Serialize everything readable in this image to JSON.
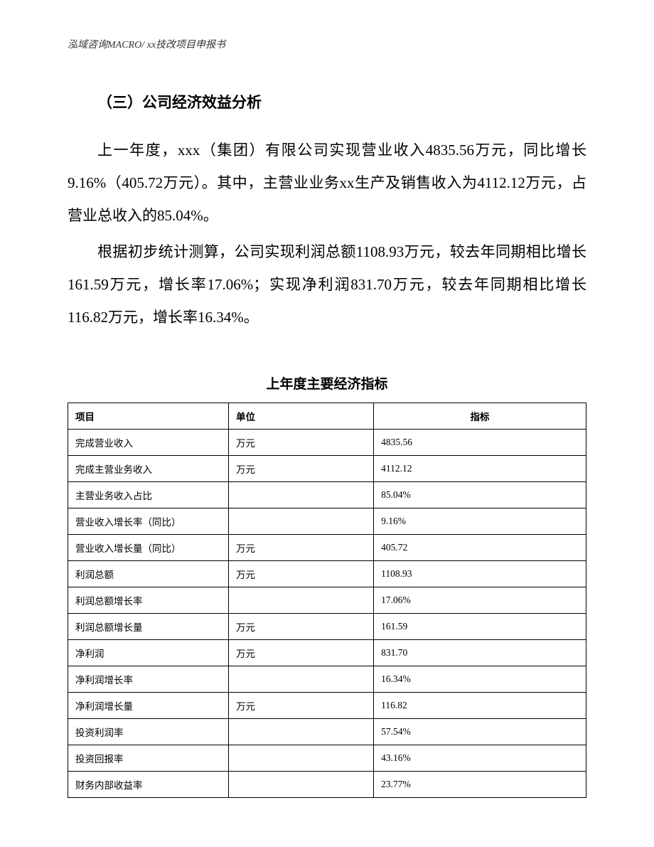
{
  "header": {
    "text": "泓域咨询MACRO/   xx技改项目申报书"
  },
  "section": {
    "heading": "（三）公司经济效益分析",
    "paragraph1": "上一年度，xxx（集团）有限公司实现营业收入4835.56万元，同比增长9.16%（405.72万元）。其中，主营业业务xx生产及销售收入为4112.12万元，占营业总收入的85.04%。",
    "paragraph2": "根据初步统计测算，公司实现利润总额1108.93万元，较去年同期相比增长161.59万元，增长率17.06%；实现净利润831.70万元，较去年同期相比增长116.82万元，增长率16.34%。"
  },
  "table": {
    "title": "上年度主要经济指标",
    "columns": {
      "col1": "项目",
      "col2": "单位",
      "col3": "指标"
    },
    "rows": [
      {
        "item": "完成营业收入",
        "unit": "万元",
        "value": "4835.56"
      },
      {
        "item": "完成主营业务收入",
        "unit": "万元",
        "value": "4112.12"
      },
      {
        "item": "主营业务收入占比",
        "unit": "",
        "value": "85.04%"
      },
      {
        "item": "营业收入增长率（同比）",
        "unit": "",
        "value": "9.16%"
      },
      {
        "item": "营业收入增长量（同比）",
        "unit": "万元",
        "value": "405.72"
      },
      {
        "item": "利润总额",
        "unit": "万元",
        "value": "1108.93"
      },
      {
        "item": "利润总额增长率",
        "unit": "",
        "value": "17.06%"
      },
      {
        "item": "利润总额增长量",
        "unit": "万元",
        "value": "161.59"
      },
      {
        "item": "净利润",
        "unit": "万元",
        "value": "831.70"
      },
      {
        "item": "净利润增长率",
        "unit": "",
        "value": "16.34%"
      },
      {
        "item": "净利润增长量",
        "unit": "万元",
        "value": "116.82"
      },
      {
        "item": "投资利润率",
        "unit": "",
        "value": "57.54%"
      },
      {
        "item": "投资回报率",
        "unit": "",
        "value": "43.16%"
      },
      {
        "item": "财务内部收益率",
        "unit": "",
        "value": "23.77%"
      }
    ]
  },
  "styles": {
    "page_bg": "#ffffff",
    "text_color": "#000000",
    "border_color": "#000000",
    "body_fontsize": 21,
    "table_fontsize": 13.5,
    "header_fontsize": 14,
    "table_title_fontsize": 19,
    "line_height": 2.2
  }
}
